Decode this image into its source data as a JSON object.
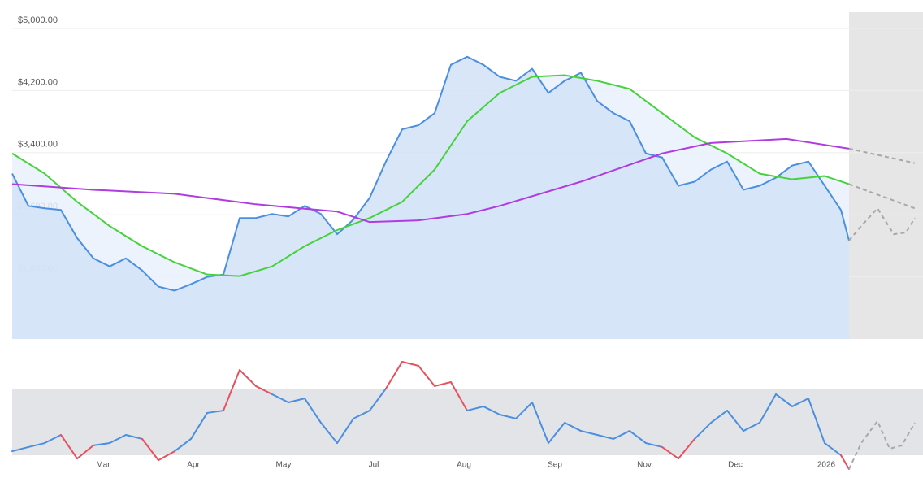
{
  "chart_data": [
    {
      "type": "line",
      "xlim": [
        0,
        112.1
      ],
      "ylim": [
        1000,
        5000
      ],
      "yticks": [
        {
          "value": 5000,
          "label": "$5,000.00"
        },
        {
          "value": 4200,
          "label": "$4,200.00"
        },
        {
          "value": 3400,
          "label": "$3,400.00"
        },
        {
          "value": 2600,
          "label": "$2,600.00"
        },
        {
          "value": 1800,
          "label": "$1,800.00"
        }
      ],
      "grid": true,
      "forecast_start": 103,
      "series": [
        {
          "color": "#4a8fe0",
          "fill": true,
          "x": [
            0,
            2,
            4,
            6,
            8,
            10,
            12,
            14,
            16,
            18,
            20,
            22,
            24,
            26,
            28,
            30,
            32,
            34,
            36,
            38,
            40,
            42,
            44,
            46,
            48,
            50,
            52,
            54,
            56,
            58,
            60,
            62,
            64,
            66,
            68,
            70,
            72,
            74,
            76,
            78,
            80,
            82,
            84,
            86,
            88,
            90,
            92,
            94,
            96,
            98,
            100,
            102,
            103
          ],
          "values": [
            3130,
            2714,
            2683,
            2662,
            2300,
            2039,
            1935,
            2039,
            1883,
            1675,
            1623,
            1706,
            1800,
            1831,
            2558,
            2558,
            2610,
            2579,
            2714,
            2610,
            2350,
            2538,
            2818,
            3286,
            3701,
            3753,
            3909,
            4532,
            4636,
            4532,
            4377,
            4325,
            4481,
            4169,
            4325,
            4429,
            4065,
            3909,
            3805,
            3390,
            3338,
            2974,
            3026,
            3182,
            3286,
            2922,
            2974,
            3078,
            3234,
            3286,
            2974,
            2662,
            2268
          ]
        },
        {
          "color": "#45d23a",
          "fill": true,
          "x": [
            0,
            4,
            8,
            12,
            16,
            20,
            24,
            28,
            32,
            36,
            40,
            44,
            48,
            52,
            56,
            60,
            64,
            68,
            72,
            76,
            80,
            84,
            88,
            92,
            96,
            100,
            103
          ],
          "values": [
            3390,
            3130,
            2766,
            2454,
            2195,
            1987,
            1831,
            1810,
            1935,
            2195,
            2403,
            2558,
            2766,
            3182,
            3805,
            4169,
            4377,
            4398,
            4325,
            4221,
            3909,
            3597,
            3390,
            3130,
            3057,
            3099,
            2995
          ]
        },
        {
          "color": "#b03ce0",
          "x": [
            0,
            10,
            20,
            30,
            40,
            44,
            50,
            56,
            60,
            70,
            80,
            86,
            95.3,
            103
          ],
          "values": [
            2995,
            2922,
            2870,
            2735,
            2641,
            2506,
            2527,
            2610,
            2714,
            3026,
            3390,
            3525,
            3577,
            3452
          ]
        },
        {
          "color": "#a8a8a8",
          "dash": true,
          "x": [
            103,
            111.1
          ],
          "values": [
            3452,
            3265
          ]
        },
        {
          "color": "#a8a8a8",
          "dash": true,
          "x": [
            103,
            111.1
          ],
          "values": [
            2995,
            2683
          ]
        },
        {
          "color": "#a8a8a8",
          "dash": true,
          "x": [
            103,
            104.5,
            106.5,
            108.5,
            110,
            111.1
          ],
          "values": [
            2268,
            2455,
            2683,
            2350,
            2371,
            2558
          ]
        }
      ]
    },
    {
      "type": "line",
      "xlim": [
        0,
        112.1
      ],
      "ylim": [
        20,
        90
      ],
      "band": [
        30,
        70
      ],
      "alert_color": "#e8505b",
      "xticks": [
        {
          "value": 11.2,
          "label": "Mar"
        },
        {
          "value": 22.3,
          "label": "Apr"
        },
        {
          "value": 33.4,
          "label": "May"
        },
        {
          "value": 44.5,
          "label": "Jul"
        },
        {
          "value": 55.6,
          "label": "Aug"
        },
        {
          "value": 66.8,
          "label": "Sep"
        },
        {
          "value": 77.8,
          "label": "Nov"
        },
        {
          "value": 89,
          "label": "Dec"
        },
        {
          "value": 100.2,
          "label": "2026"
        }
      ],
      "series": [
        {
          "color": "#4a8fe0",
          "x": [
            0,
            2,
            4,
            6,
            8,
            10,
            12,
            14,
            16,
            18,
            20,
            22,
            24,
            26,
            28,
            30,
            32,
            34,
            36,
            38,
            40,
            42,
            44,
            46,
            48,
            50,
            52,
            54,
            56,
            58,
            60,
            62,
            64,
            66,
            68,
            70,
            72,
            74,
            76,
            78,
            80,
            82,
            84,
            86,
            88,
            90,
            92,
            94,
            96,
            98,
            100,
            102,
            103
          ],
          "values": [
            32.4,
            34.9,
            37.3,
            42.2,
            28,
            35.9,
            37.3,
            42.2,
            39.8,
            27,
            32.4,
            39.8,
            55.4,
            56.8,
            81.2,
            71.5,
            66.6,
            61.7,
            64.1,
            49.5,
            37.3,
            52,
            56.8,
            70,
            86.1,
            83.7,
            71.5,
            73.9,
            56.8,
            59.3,
            54.4,
            52,
            61.7,
            37.3,
            49.5,
            44.6,
            42.2,
            39.8,
            44.6,
            37.3,
            34.9,
            28,
            39.8,
            49.5,
            56.8,
            44.6,
            49.5,
            66.6,
            59.3,
            64.1,
            37.3,
            30,
            21.7
          ]
        },
        {
          "color": "#a8a8a8",
          "dash": true,
          "x": [
            103,
            104.5,
            106.5,
            108,
            109.5,
            111.1
          ],
          "values": [
            21.7,
            37.3,
            50.5,
            33.9,
            35.9,
            49.5
          ]
        }
      ]
    }
  ]
}
